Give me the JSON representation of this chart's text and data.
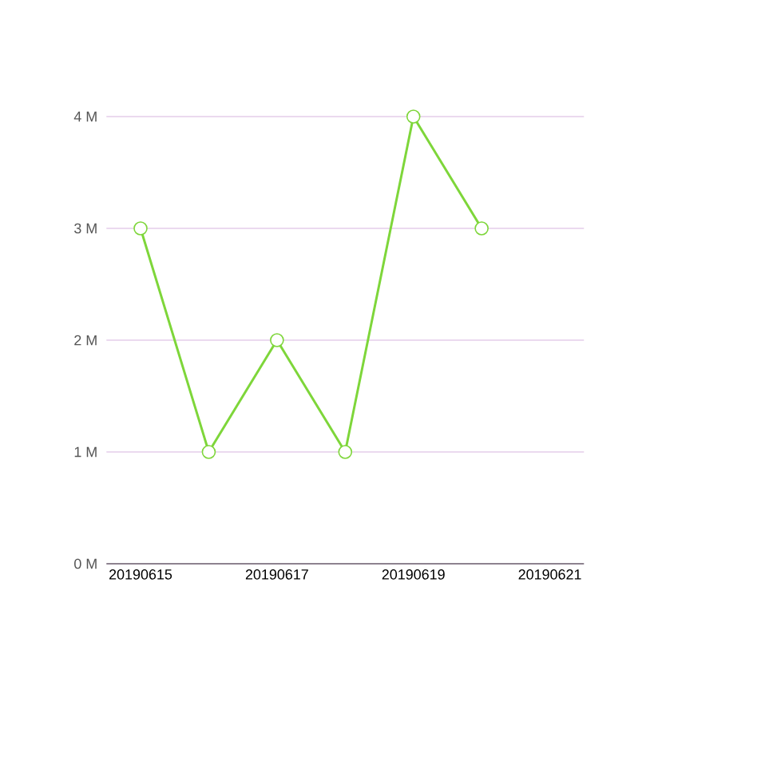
{
  "chart_data": {
    "type": "line",
    "categories": [
      "20190615",
      null,
      "20190617",
      null,
      "20190619",
      null,
      "20190621"
    ],
    "series": [
      {
        "color": "#7ed63a",
        "values": [
          3,
          1,
          2,
          1,
          4,
          3,
          null
        ]
      }
    ],
    "ylim": [
      0,
      4
    ],
    "yticks": [
      {
        "value": 0,
        "label": "0 M"
      },
      {
        "value": 1,
        "label": "1 M"
      },
      {
        "value": 2,
        "label": "2 M"
      },
      {
        "value": 3,
        "label": "3 M"
      },
      {
        "value": 4,
        "label": "4 M"
      }
    ],
    "grid": "y",
    "marker": "circle",
    "line_style": "solid"
  }
}
